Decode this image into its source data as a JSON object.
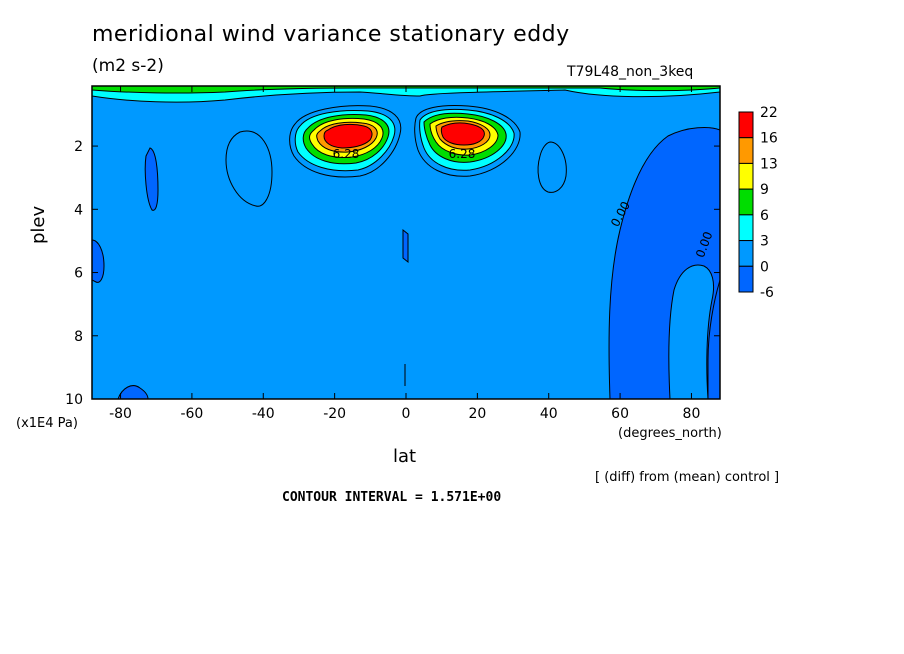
{
  "title": "meridional wind variance  stationary eddy",
  "units": "(m2 s-2)",
  "run_name": "T79L48_non_3keq",
  "note": "[ (diff) from (mean) control ]",
  "contour_interval": "CONTOUR INTERVAL = 1.571E+00",
  "chart_data": {
    "type": "heatmap",
    "xlabel": "lat",
    "xunits": "(degrees_north)",
    "ylabel": "plev",
    "yunits": "(x1E4 Pa)",
    "xlim": [
      -88,
      88
    ],
    "ylim": [
      10,
      0.1
    ],
    "x_ticks": [
      -80,
      -60,
      -40,
      -20,
      0,
      20,
      40,
      60,
      80
    ],
    "y_ticks": [
      2,
      4,
      6,
      8,
      10
    ],
    "colorbar": {
      "levels": [
        "22",
        "16",
        "13",
        "9",
        "6",
        "3",
        "0",
        "-6"
      ],
      "colors": [
        "#ff0000",
        "#ff9900",
        "#ffff00",
        "#00dd00",
        "#00ffff",
        "#0099ff",
        "#0066ff"
      ]
    },
    "background_color": "#0099ff",
    "contour_labels": [
      "0.00",
      "0.00",
      "6.28",
      "6.28"
    ],
    "features": [
      {
        "name": "southern maximum",
        "lat": -17,
        "plev": 1.6,
        "value": 22
      },
      {
        "name": "northern maximum",
        "lat": 15,
        "plev": 1.6,
        "value": 22
      },
      {
        "name": "northern high-latitude minimum",
        "lat": 70,
        "plev": 6,
        "value": -6
      }
    ]
  }
}
